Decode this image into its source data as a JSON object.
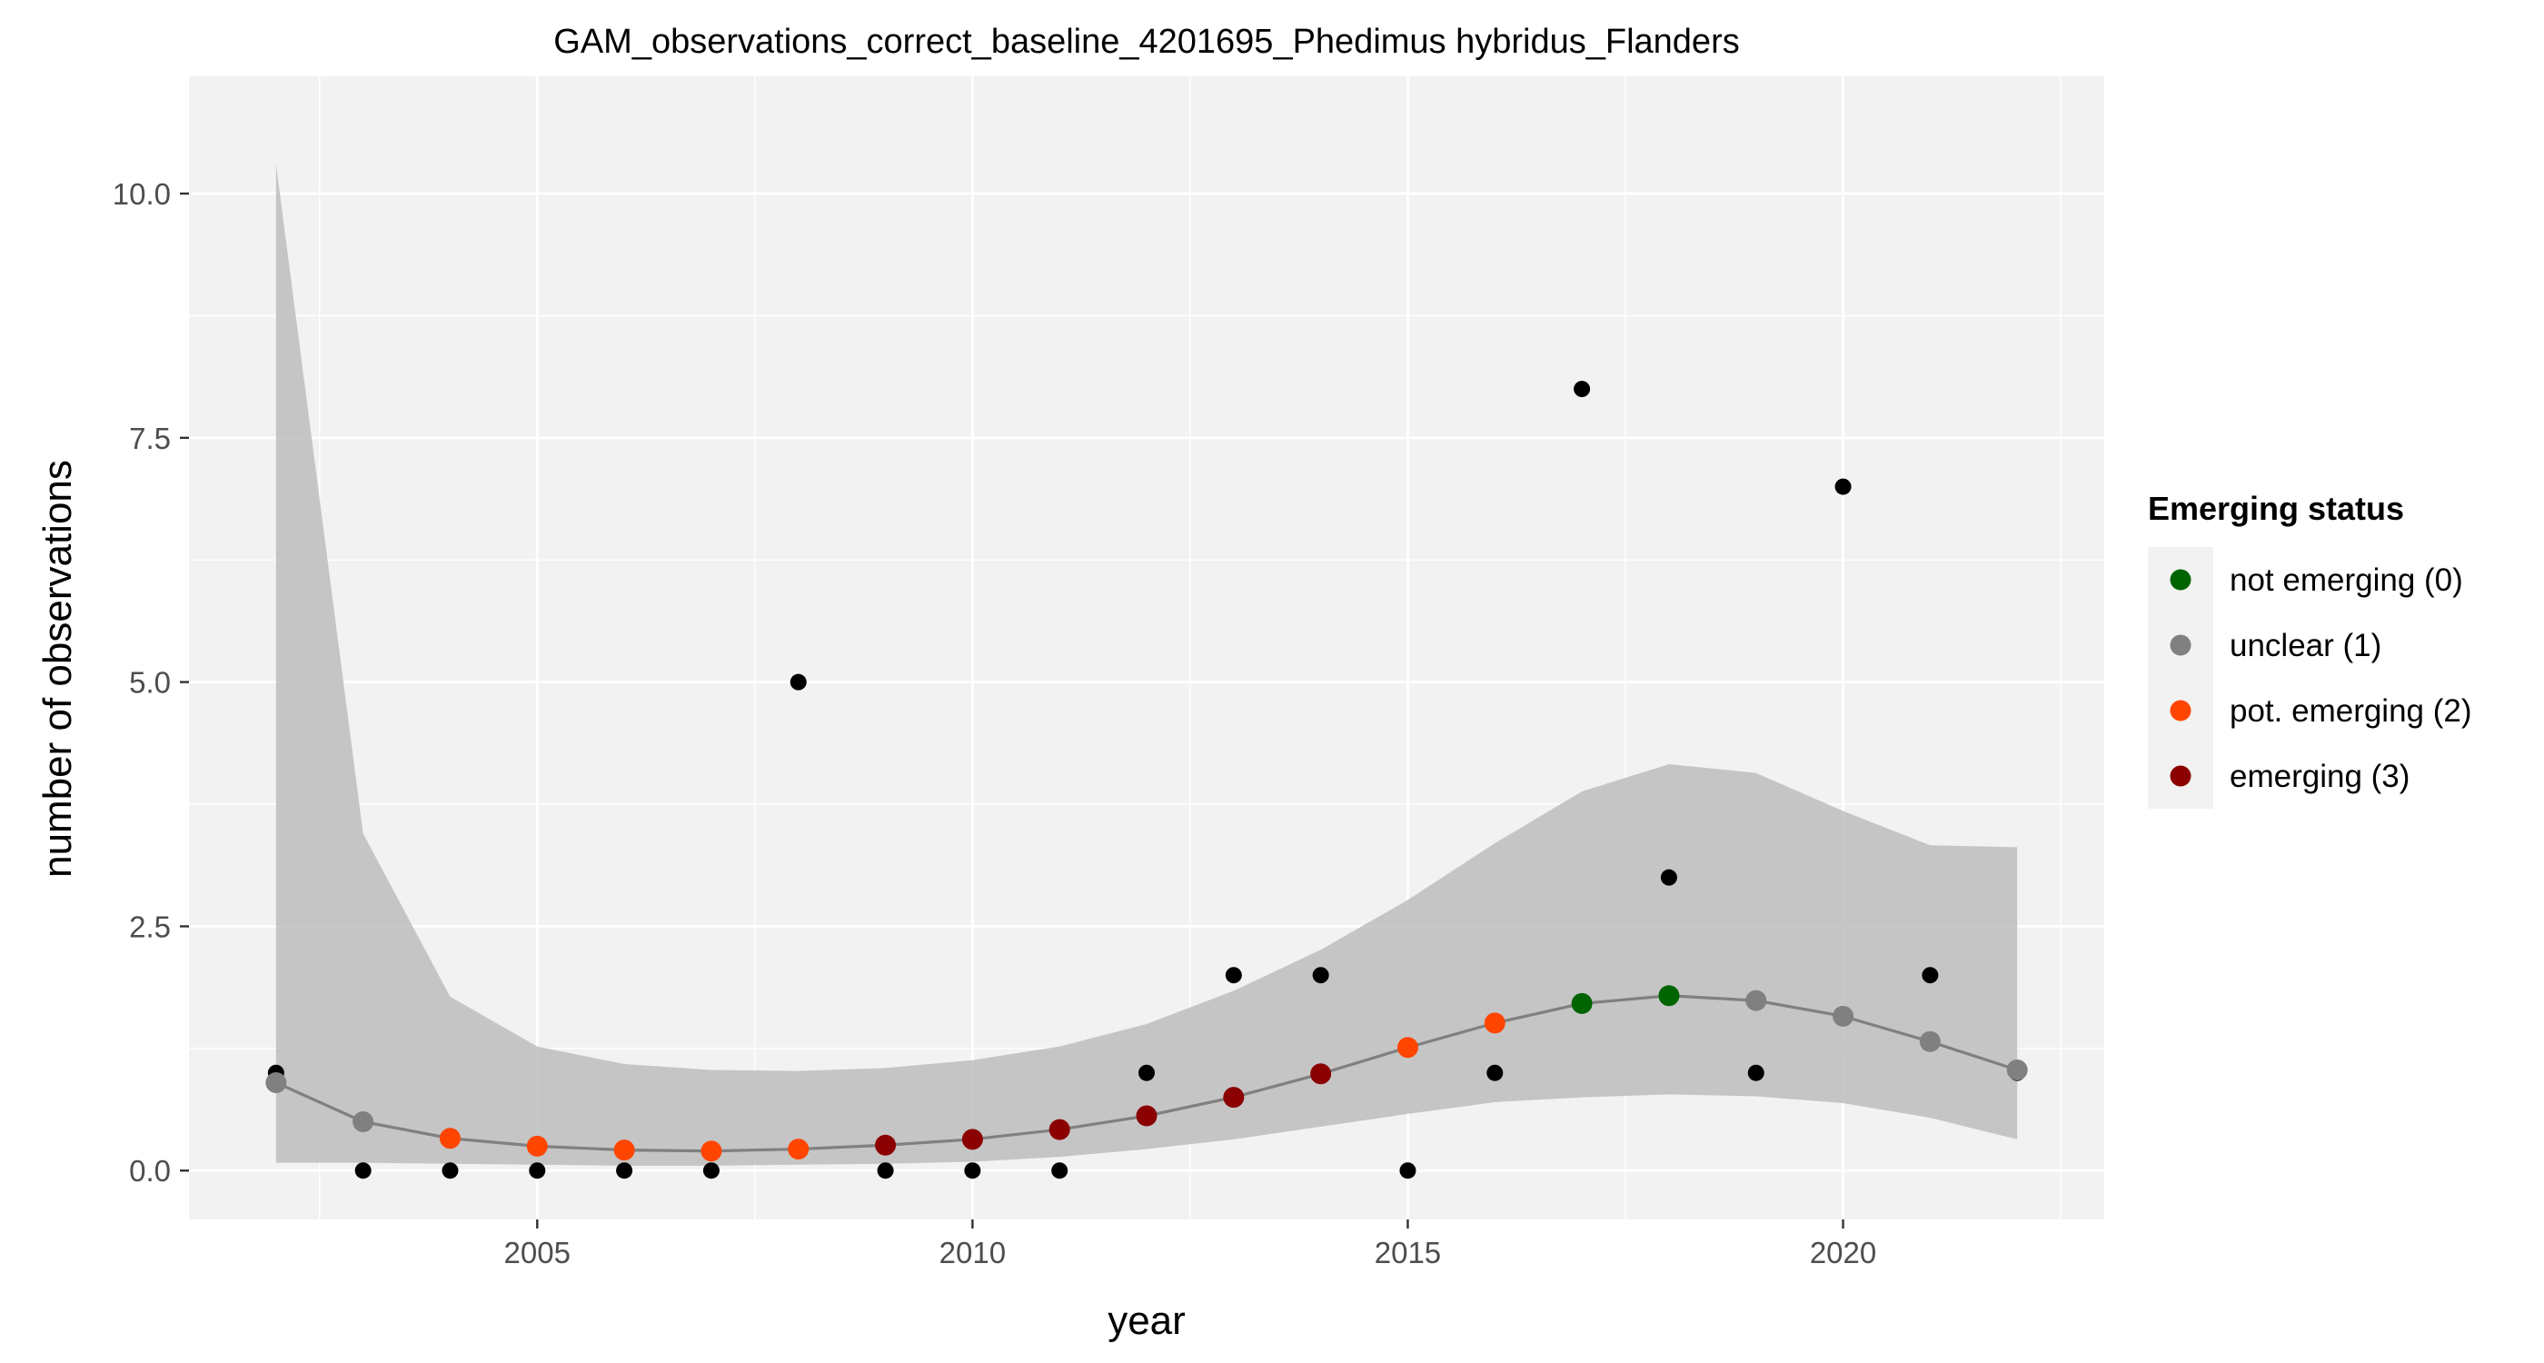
{
  "chart_data": {
    "type": "scatter",
    "title": "GAM_observations_correct_baseline_4201695_Phedimus hybridus_Flanders",
    "xlabel": "year",
    "ylabel": "number of observations",
    "xlim": [
      2001.0,
      2023.0
    ],
    "ylim": [
      -0.5,
      11.2
    ],
    "x_ticks": [
      2005,
      2010,
      2015,
      2020
    ],
    "x_tick_labels": [
      "2005",
      "2010",
      "2015",
      "2020"
    ],
    "y_ticks": [
      0,
      2.5,
      5,
      7.5,
      10
    ],
    "y_tick_labels": [
      "0.0",
      "2.5",
      "5.0",
      "7.5",
      "10.0"
    ],
    "grid": true,
    "legend_position": "right",
    "legend": {
      "title": "Emerging status",
      "entries": [
        {
          "label": "not emerging (0)",
          "color": "#006400",
          "status": 0
        },
        {
          "label": "unclear (1)",
          "color": "#808080",
          "status": 1
        },
        {
          "label": "pot. emerging (2)",
          "color": "#ff4500",
          "status": 2
        },
        {
          "label": "emerging (3)",
          "color": "#8b0000",
          "status": 3
        }
      ]
    },
    "observations": {
      "name": "observed",
      "color": "#000000",
      "x": [
        2002,
        2003,
        2004,
        2005,
        2006,
        2007,
        2008,
        2009,
        2010,
        2011,
        2012,
        2013,
        2014,
        2015,
        2016,
        2017,
        2018,
        2019,
        2020,
        2021,
        2022
      ],
      "y": [
        1,
        0,
        0,
        0,
        0,
        0,
        5,
        0,
        0,
        0,
        1,
        2,
        2,
        0,
        1,
        8,
        3,
        1,
        7,
        2,
        1
      ]
    },
    "fit": {
      "name": "GAM fit",
      "line_color": "#808080",
      "x": [
        2002,
        2003,
        2004,
        2005,
        2006,
        2007,
        2008,
        2009,
        2010,
        2011,
        2012,
        2013,
        2014,
        2015,
        2016,
        2017,
        2018,
        2019,
        2020,
        2021,
        2022
      ],
      "y": [
        0.9,
        0.5,
        0.33,
        0.25,
        0.21,
        0.2,
        0.22,
        0.26,
        0.32,
        0.42,
        0.56,
        0.75,
        0.99,
        1.26,
        1.51,
        1.71,
        1.79,
        1.74,
        1.58,
        1.32,
        1.03
      ],
      "status": [
        1,
        1,
        2,
        2,
        2,
        2,
        2,
        3,
        3,
        3,
        3,
        3,
        3,
        2,
        2,
        0,
        0,
        1,
        1,
        1,
        1
      ],
      "lower": [
        0.08,
        0.08,
        0.07,
        0.06,
        0.05,
        0.05,
        0.06,
        0.07,
        0.09,
        0.14,
        0.22,
        0.32,
        0.45,
        0.58,
        0.7,
        0.75,
        0.78,
        0.76,
        0.69,
        0.54,
        0.32
      ],
      "upper": [
        10.3,
        3.45,
        1.78,
        1.27,
        1.09,
        1.03,
        1.02,
        1.05,
        1.13,
        1.27,
        1.5,
        1.84,
        2.26,
        2.77,
        3.35,
        3.88,
        4.16,
        4.07,
        3.68,
        3.33,
        3.31
      ],
      "band_color": "#bdbdbd"
    },
    "panel_background": "#f2f2f2",
    "grid_color": "#ffffff"
  }
}
